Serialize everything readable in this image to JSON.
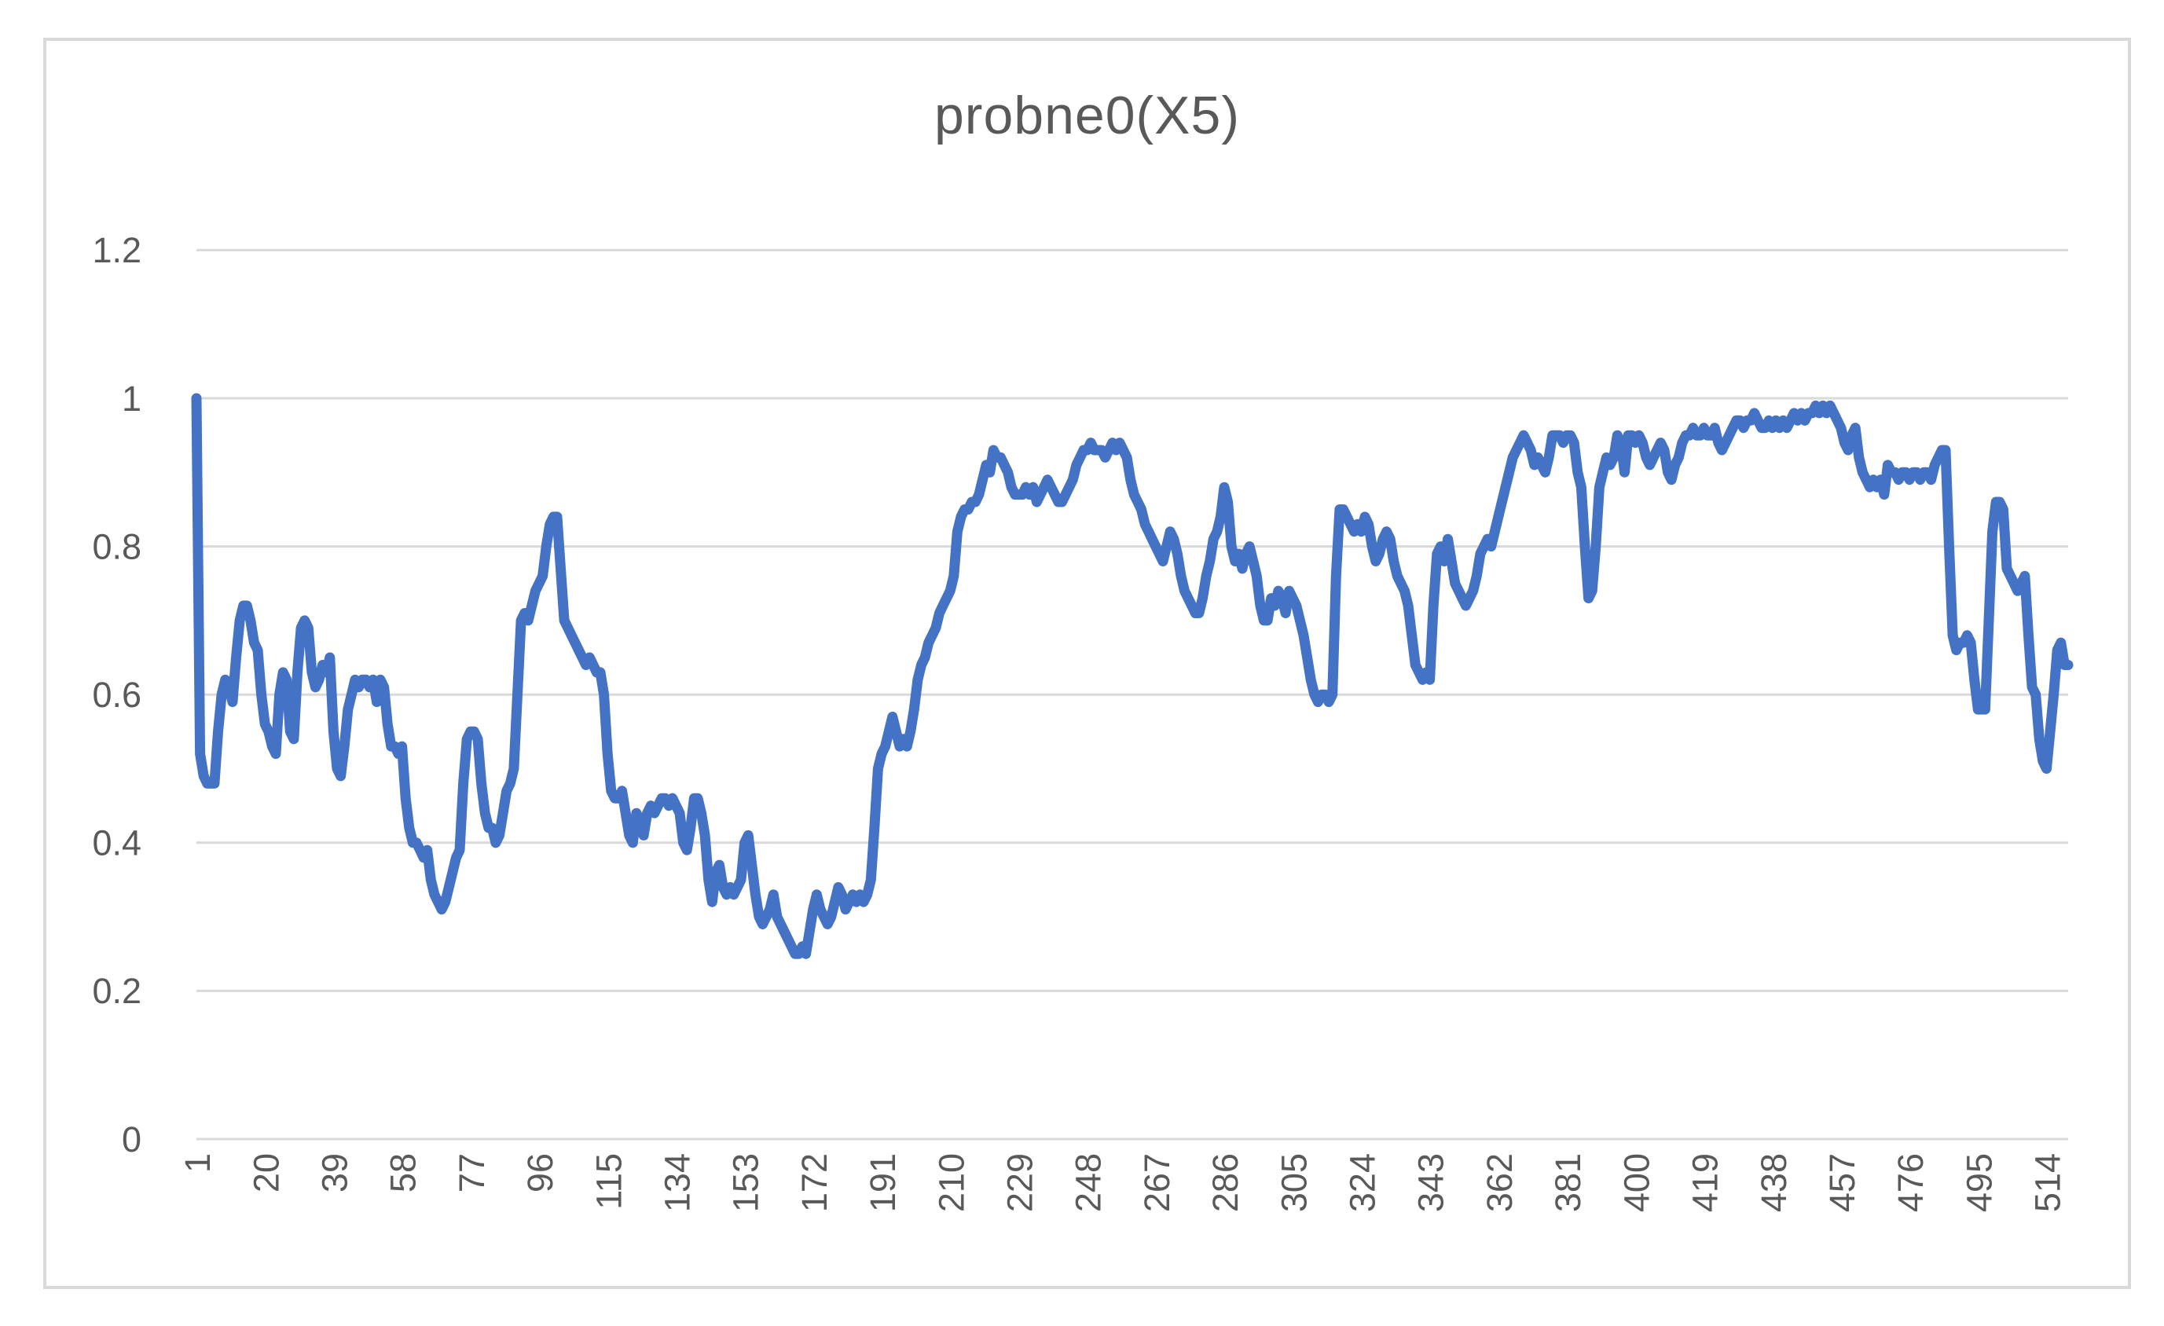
{
  "title": "probne0(X5)",
  "colors": {
    "line": "#4472C4",
    "grid": "#D9D9D9",
    "frame": "#D9D9D9",
    "text": "#595959",
    "background": "#FFFFFF"
  },
  "chart_data": {
    "type": "line",
    "title": "probne0(X5)",
    "legend": "none",
    "grid": "horizontal-only",
    "x_axis": {
      "first_category": 1,
      "tick_step": 19,
      "tick_labels": [
        "1",
        "20",
        "39",
        "58",
        "77",
        "96",
        "115",
        "134",
        "153",
        "172",
        "191",
        "210",
        "229",
        "248",
        "267",
        "286",
        "305",
        "324",
        "343",
        "362",
        "381",
        "400",
        "419",
        "438",
        "457",
        "476",
        "495",
        "514"
      ],
      "label_rotation_degrees": -90
    },
    "y_axis": {
      "min": 0,
      "max": 1.2,
      "tick_values": [
        0,
        0.2,
        0.4,
        0.6,
        0.8,
        1,
        1.2
      ],
      "tick_labels": [
        "0",
        "0.2",
        "0.4",
        "0.6",
        "0.8",
        "1",
        "1.2"
      ]
    },
    "n_points": 520,
    "series": [
      {
        "name": "probne0(X5)",
        "values": [
          1.0,
          0.52,
          0.49,
          0.48,
          0.48,
          0.48,
          0.55,
          0.6,
          0.62,
          0.61,
          0.59,
          0.65,
          0.7,
          0.72,
          0.72,
          0.7,
          0.67,
          0.66,
          0.6,
          0.56,
          0.55,
          0.53,
          0.52,
          0.6,
          0.63,
          0.62,
          0.55,
          0.54,
          0.63,
          0.69,
          0.7,
          0.69,
          0.63,
          0.61,
          0.62,
          0.64,
          0.63,
          0.65,
          0.55,
          0.5,
          0.49,
          0.53,
          0.58,
          0.6,
          0.62,
          0.61,
          0.62,
          0.62,
          0.61,
          0.62,
          0.59,
          0.62,
          0.61,
          0.56,
          0.53,
          0.53,
          0.52,
          0.53,
          0.46,
          0.42,
          0.4,
          0.4,
          0.39,
          0.38,
          0.39,
          0.35,
          0.33,
          0.32,
          0.31,
          0.32,
          0.34,
          0.36,
          0.38,
          0.39,
          0.48,
          0.54,
          0.55,
          0.55,
          0.54,
          0.48,
          0.44,
          0.42,
          0.42,
          0.4,
          0.41,
          0.44,
          0.47,
          0.48,
          0.5,
          0.6,
          0.7,
          0.71,
          0.7,
          0.72,
          0.74,
          0.75,
          0.76,
          0.8,
          0.83,
          0.84,
          0.84,
          0.77,
          0.7,
          0.69,
          0.68,
          0.67,
          0.66,
          0.65,
          0.64,
          0.65,
          0.64,
          0.63,
          0.63,
          0.6,
          0.52,
          0.47,
          0.46,
          0.46,
          0.47,
          0.44,
          0.41,
          0.4,
          0.44,
          0.43,
          0.41,
          0.44,
          0.45,
          0.44,
          0.45,
          0.46,
          0.46,
          0.45,
          0.46,
          0.45,
          0.44,
          0.4,
          0.39,
          0.42,
          0.46,
          0.46,
          0.44,
          0.41,
          0.35,
          0.32,
          0.36,
          0.37,
          0.34,
          0.33,
          0.34,
          0.33,
          0.34,
          0.35,
          0.4,
          0.41,
          0.37,
          0.33,
          0.3,
          0.29,
          0.3,
          0.31,
          0.33,
          0.3,
          0.29,
          0.28,
          0.27,
          0.26,
          0.25,
          0.25,
          0.26,
          0.25,
          0.28,
          0.31,
          0.33,
          0.31,
          0.3,
          0.29,
          0.3,
          0.32,
          0.34,
          0.33,
          0.31,
          0.32,
          0.33,
          0.32,
          0.33,
          0.32,
          0.33,
          0.35,
          0.42,
          0.5,
          0.52,
          0.53,
          0.55,
          0.57,
          0.55,
          0.53,
          0.54,
          0.53,
          0.55,
          0.58,
          0.62,
          0.64,
          0.65,
          0.67,
          0.68,
          0.69,
          0.71,
          0.72,
          0.73,
          0.74,
          0.76,
          0.82,
          0.84,
          0.85,
          0.85,
          0.86,
          0.86,
          0.87,
          0.89,
          0.91,
          0.9,
          0.93,
          0.92,
          0.92,
          0.91,
          0.9,
          0.88,
          0.87,
          0.87,
          0.87,
          0.88,
          0.87,
          0.88,
          0.86,
          0.87,
          0.88,
          0.89,
          0.88,
          0.87,
          0.86,
          0.86,
          0.87,
          0.88,
          0.89,
          0.91,
          0.92,
          0.93,
          0.93,
          0.94,
          0.93,
          0.93,
          0.93,
          0.92,
          0.93,
          0.94,
          0.93,
          0.94,
          0.93,
          0.92,
          0.89,
          0.87,
          0.86,
          0.85,
          0.83,
          0.82,
          0.81,
          0.8,
          0.79,
          0.78,
          0.8,
          0.82,
          0.81,
          0.79,
          0.76,
          0.74,
          0.73,
          0.72,
          0.71,
          0.71,
          0.73,
          0.76,
          0.78,
          0.81,
          0.82,
          0.84,
          0.88,
          0.86,
          0.8,
          0.78,
          0.79,
          0.77,
          0.79,
          0.8,
          0.78,
          0.76,
          0.72,
          0.7,
          0.7,
          0.73,
          0.72,
          0.74,
          0.73,
          0.71,
          0.74,
          0.73,
          0.72,
          0.7,
          0.68,
          0.65,
          0.62,
          0.6,
          0.59,
          0.6,
          0.6,
          0.59,
          0.6,
          0.76,
          0.85,
          0.85,
          0.84,
          0.83,
          0.82,
          0.83,
          0.82,
          0.84,
          0.83,
          0.8,
          0.78,
          0.79,
          0.81,
          0.82,
          0.81,
          0.78,
          0.76,
          0.75,
          0.74,
          0.72,
          0.68,
          0.64,
          0.63,
          0.62,
          0.63,
          0.62,
          0.72,
          0.79,
          0.8,
          0.78,
          0.81,
          0.78,
          0.75,
          0.74,
          0.73,
          0.72,
          0.73,
          0.74,
          0.76,
          0.79,
          0.8,
          0.81,
          0.8,
          0.82,
          0.84,
          0.86,
          0.88,
          0.9,
          0.92,
          0.93,
          0.94,
          0.95,
          0.94,
          0.93,
          0.91,
          0.92,
          0.91,
          0.9,
          0.92,
          0.95,
          0.95,
          0.95,
          0.94,
          0.95,
          0.95,
          0.94,
          0.9,
          0.88,
          0.8,
          0.73,
          0.74,
          0.8,
          0.88,
          0.9,
          0.92,
          0.91,
          0.92,
          0.95,
          0.94,
          0.9,
          0.95,
          0.95,
          0.94,
          0.95,
          0.94,
          0.92,
          0.91,
          0.92,
          0.93,
          0.94,
          0.93,
          0.9,
          0.89,
          0.91,
          0.92,
          0.94,
          0.95,
          0.95,
          0.96,
          0.95,
          0.95,
          0.96,
          0.95,
          0.95,
          0.96,
          0.94,
          0.93,
          0.94,
          0.95,
          0.96,
          0.97,
          0.97,
          0.96,
          0.97,
          0.97,
          0.98,
          0.97,
          0.96,
          0.96,
          0.97,
          0.96,
          0.97,
          0.96,
          0.97,
          0.96,
          0.97,
          0.98,
          0.97,
          0.98,
          0.97,
          0.98,
          0.98,
          0.99,
          0.98,
          0.99,
          0.98,
          0.99,
          0.98,
          0.97,
          0.96,
          0.94,
          0.93,
          0.95,
          0.96,
          0.92,
          0.9,
          0.89,
          0.88,
          0.89,
          0.88,
          0.89,
          0.87,
          0.91,
          0.9,
          0.9,
          0.89,
          0.9,
          0.9,
          0.89,
          0.9,
          0.9,
          0.89,
          0.9,
          0.9,
          0.89,
          0.91,
          0.92,
          0.93,
          0.93,
          0.8,
          0.68,
          0.66,
          0.67,
          0.67,
          0.68,
          0.67,
          0.62,
          0.58,
          0.58,
          0.58,
          0.7,
          0.82,
          0.86,
          0.86,
          0.85,
          0.77,
          0.76,
          0.75,
          0.74,
          0.75,
          0.76,
          0.68,
          0.61,
          0.6,
          0.54,
          0.51,
          0.5,
          0.55,
          0.6,
          0.66,
          0.67,
          0.64,
          0.64
        ]
      }
    ]
  }
}
